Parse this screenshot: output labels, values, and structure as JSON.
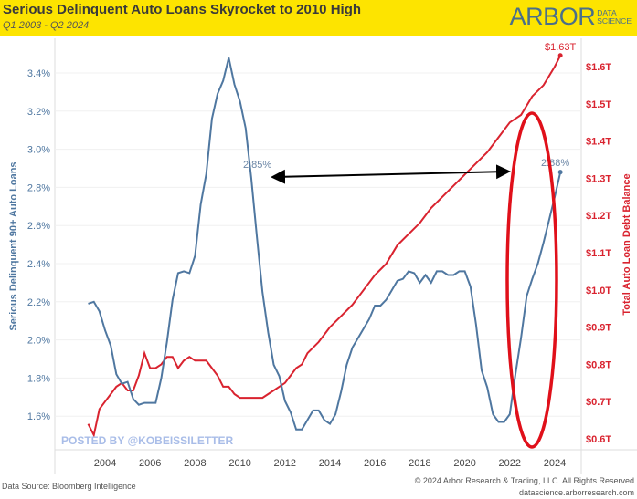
{
  "header": {
    "title": "Serious Delinquent Auto Loans Skyrocket to 2010 High",
    "subtitle": "Q1 2003 - Q2 2024",
    "logo_main": "ARBOR",
    "logo_sub1": "DATA",
    "logo_sub2": "SCIENCE"
  },
  "watermark": "POSTED BY @KOBEISSILETTER",
  "footer": {
    "source": "Data Source: Bloomberg Intelligence",
    "copyright": "© 2024 Arbor Research & Trading, LLC. All Rights Reserved",
    "url": "datascience.arborresearch.com"
  },
  "colors": {
    "delinquency": "#4f77a0",
    "debt": "#d9232f",
    "header_bg": "#fde400"
  },
  "chart_data": {
    "type": "line",
    "title": "Serious Delinquent Auto Loans Skyrocket to 2010 High",
    "xlabel": "",
    "ylabel": "Serious Delinquent 90+ Auto Loans",
    "ylabel_right": "Total Auto Loan Debt Balance",
    "xlim": [
      2002.8,
      2025.2
    ],
    "ylim": [
      1.5,
      3.5
    ],
    "ylim_right": [
      0.58,
      1.66
    ],
    "x_ticks": [
      "2004",
      "2006",
      "2008",
      "2010",
      "2012",
      "2014",
      "2016",
      "2018",
      "2020",
      "2022",
      "2024"
    ],
    "y_ticks": [
      "1.6%",
      "1.8%",
      "2.0%",
      "2.2%",
      "2.4%",
      "2.6%",
      "2.8%",
      "3.0%",
      "3.2%",
      "3.4%"
    ],
    "y_ticks_right": [
      "$0.6T",
      "$0.7T",
      "$0.8T",
      "$0.9T",
      "$1.0T",
      "$1.1T",
      "$1.2T",
      "$1.3T",
      "$1.4T",
      "$1.5T",
      "$1.6T"
    ],
    "grid": true,
    "annotations": {
      "left_point": "2.85%",
      "right_point": "2.88%",
      "end_debt": "$1.63T"
    },
    "series": [
      {
        "name": "Serious Delinquent 90+ Auto Loans (%)",
        "axis": "left",
        "x": [
          2003.25,
          2003.5,
          2003.75,
          2004,
          2004.25,
          2004.5,
          2004.75,
          2005,
          2005.25,
          2005.5,
          2005.75,
          2006,
          2006.25,
          2006.5,
          2006.75,
          2007,
          2007.25,
          2007.5,
          2007.75,
          2008,
          2008.25,
          2008.5,
          2008.75,
          2009,
          2009.25,
          2009.5,
          2009.75,
          2010,
          2010.25,
          2010.5,
          2010.75,
          2011,
          2011.25,
          2011.5,
          2011.75,
          2012,
          2012.25,
          2012.5,
          2012.75,
          2013,
          2013.25,
          2013.5,
          2013.75,
          2014,
          2014.25,
          2014.5,
          2014.75,
          2015,
          2015.25,
          2015.5,
          2015.75,
          2016,
          2016.25,
          2016.5,
          2016.75,
          2017,
          2017.25,
          2017.5,
          2017.75,
          2018,
          2018.25,
          2018.5,
          2018.75,
          2019,
          2019.25,
          2019.5,
          2019.75,
          2020,
          2020.25,
          2020.5,
          2020.75,
          2021,
          2021.25,
          2021.5,
          2021.75,
          2022,
          2022.25,
          2022.5,
          2022.75,
          2023,
          2023.25,
          2023.5,
          2023.75,
          2024,
          2024.25
        ],
        "values": [
          2.19,
          2.2,
          2.15,
          2.05,
          1.97,
          1.82,
          1.77,
          1.78,
          1.69,
          1.66,
          1.67,
          1.67,
          1.67,
          1.8,
          1.99,
          2.21,
          2.35,
          2.36,
          2.35,
          2.44,
          2.71,
          2.87,
          3.16,
          3.29,
          3.36,
          3.48,
          3.34,
          3.25,
          3.11,
          2.85,
          2.54,
          2.25,
          2.04,
          1.87,
          1.81,
          1.68,
          1.62,
          1.53,
          1.53,
          1.58,
          1.63,
          1.63,
          1.58,
          1.56,
          1.61,
          1.73,
          1.87,
          1.96,
          2.01,
          2.06,
          2.11,
          2.18,
          2.18,
          2.21,
          2.26,
          2.31,
          2.32,
          2.36,
          2.35,
          2.3,
          2.34,
          2.3,
          2.36,
          2.36,
          2.34,
          2.34,
          2.36,
          2.36,
          2.28,
          2.08,
          1.84,
          1.75,
          1.61,
          1.57,
          1.57,
          1.61,
          1.82,
          2.01,
          2.23,
          2.32,
          2.4,
          2.51,
          2.63,
          2.75,
          2.88
        ]
      },
      {
        "name": "Total Auto Loan Debt Balance ($T)",
        "axis": "right",
        "x": [
          2003.25,
          2003.5,
          2003.75,
          2004,
          2004.25,
          2004.5,
          2004.75,
          2005,
          2005.25,
          2005.5,
          2005.75,
          2006,
          2006.25,
          2006.5,
          2006.75,
          2007,
          2007.25,
          2007.5,
          2007.75,
          2008,
          2008.25,
          2008.5,
          2008.75,
          2009,
          2009.25,
          2009.5,
          2009.75,
          2010,
          2010.25,
          2010.5,
          2010.75,
          2011,
          2011.25,
          2011.5,
          2011.75,
          2012,
          2012.25,
          2012.5,
          2012.75,
          2013,
          2013.5,
          2014,
          2014.5,
          2015,
          2015.5,
          2016,
          2016.5,
          2017,
          2017.5,
          2018,
          2018.5,
          2019,
          2019.5,
          2020,
          2020.5,
          2021,
          2021.5,
          2022,
          2022.5,
          2023,
          2023.5,
          2024,
          2024.25
        ],
        "values": [
          0.64,
          0.61,
          0.68,
          0.7,
          0.72,
          0.74,
          0.75,
          0.73,
          0.73,
          0.77,
          0.83,
          0.79,
          0.79,
          0.8,
          0.82,
          0.82,
          0.79,
          0.81,
          0.82,
          0.81,
          0.81,
          0.81,
          0.79,
          0.77,
          0.74,
          0.74,
          0.72,
          0.71,
          0.71,
          0.71,
          0.71,
          0.71,
          0.72,
          0.73,
          0.74,
          0.75,
          0.77,
          0.79,
          0.8,
          0.83,
          0.86,
          0.9,
          0.93,
          0.96,
          1.0,
          1.04,
          1.07,
          1.12,
          1.15,
          1.18,
          1.22,
          1.25,
          1.28,
          1.31,
          1.34,
          1.37,
          1.41,
          1.45,
          1.47,
          1.52,
          1.55,
          1.6,
          1.63
        ]
      }
    ]
  }
}
